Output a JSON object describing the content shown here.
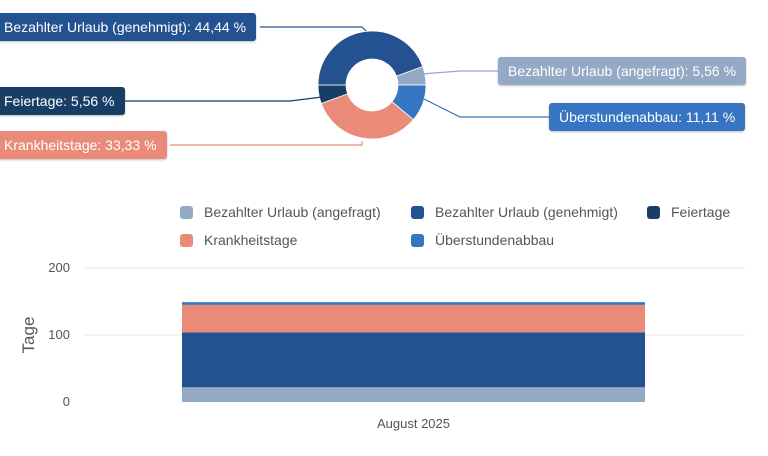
{
  "colors": {
    "urlaub_angefragt": "#93a9c6",
    "urlaub_genehmigt": "#245290",
    "feiertage": "#183e66",
    "krankheitstage": "#e98b78",
    "ueberstundenabbau": "#3575c2"
  },
  "chart_data": [
    {
      "type": "pie",
      "subtype": "donut",
      "slices": [
        {
          "name": "Bezahlter Urlaub (angefragt)",
          "value": 5.56,
          "label": "Bezahlter Urlaub (angefragt): 5,56 %",
          "color_key": "urlaub_angefragt"
        },
        {
          "name": "Überstundenabbau",
          "value": 11.11,
          "label": "Überstundenabbau: 11,11 %",
          "color_key": "ueberstundenabbau"
        },
        {
          "name": "Krankheitstage",
          "value": 33.33,
          "label": "Krankheitstage: 33,33 %",
          "color_key": "krankheitstage"
        },
        {
          "name": "Feiertage",
          "value": 5.56,
          "label": "Feiertage: 5,56 %",
          "color_key": "feiertage"
        },
        {
          "name": "Bezahlter Urlaub (genehmigt)",
          "value": 44.44,
          "label": "Bezahlter Urlaub (genehmigt): 44,44 %",
          "color_key": "urlaub_genehmigt"
        }
      ]
    },
    {
      "type": "bar",
      "stacked": true,
      "categories": [
        "August 2025"
      ],
      "ylabel": "Tage",
      "ylim": [
        0,
        200
      ],
      "yticks": [
        "0",
        "100",
        "200"
      ],
      "grid": true,
      "legend_position": "top",
      "series": [
        {
          "name": "Bezahlter Urlaub (angefragt)",
          "values": [
            22
          ],
          "color_key": "urlaub_angefragt"
        },
        {
          "name": "Bezahlter Urlaub (genehmigt)",
          "values": [
            82
          ],
          "color_key": "urlaub_genehmigt"
        },
        {
          "name": "Feiertage",
          "values": [
            0
          ],
          "color_key": "feiertage"
        },
        {
          "name": "Krankheitstage",
          "values": [
            41
          ],
          "color_key": "krankheitstage"
        },
        {
          "name": "Überstundenabbau",
          "values": [
            4
          ],
          "color_key": "ueberstundenabbau"
        }
      ],
      "legend": [
        {
          "label": "Bezahlter Urlaub (angefragt)",
          "color_key": "urlaub_angefragt"
        },
        {
          "label": "Bezahlter Urlaub (genehmigt)",
          "color_key": "urlaub_genehmigt"
        },
        {
          "label": "Feiertage",
          "color_key": "feiertage"
        },
        {
          "label": "Krankheitstage",
          "color_key": "krankheitstage"
        },
        {
          "label": "Überstundenabbau",
          "color_key": "ueberstundenabbau"
        }
      ]
    }
  ]
}
